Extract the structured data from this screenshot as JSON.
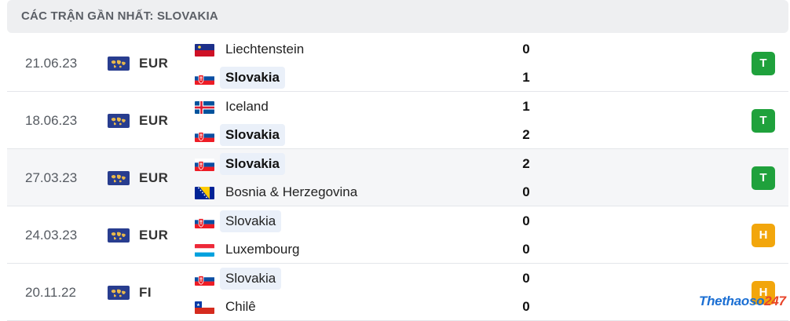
{
  "header": {
    "title": "CÁC TRẬN GẦN NHẤT: SLOVAKIA"
  },
  "matches": [
    {
      "date": "21.06.23",
      "competition": "EUR",
      "home": {
        "name": "Liechtenstein",
        "flag": "liechtenstein",
        "score": "0",
        "highlight": false,
        "bold": false
      },
      "away": {
        "name": "Slovakia",
        "flag": "slovakia",
        "score": "1",
        "highlight": true,
        "bold": true
      },
      "result": "T",
      "result_color": "#1fa13c"
    },
    {
      "date": "18.06.23",
      "competition": "EUR",
      "home": {
        "name": "Iceland",
        "flag": "iceland",
        "score": "1",
        "highlight": false,
        "bold": false
      },
      "away": {
        "name": "Slovakia",
        "flag": "slovakia",
        "score": "2",
        "highlight": true,
        "bold": true
      },
      "result": "T",
      "result_color": "#1fa13c"
    },
    {
      "date": "27.03.23",
      "competition": "EUR",
      "home": {
        "name": "Slovakia",
        "flag": "slovakia",
        "score": "2",
        "highlight": true,
        "bold": true
      },
      "away": {
        "name": "Bosnia & Herzegovina",
        "flag": "bosnia",
        "score": "0",
        "highlight": false,
        "bold": false
      },
      "result": "T",
      "result_color": "#1fa13c"
    },
    {
      "date": "24.03.23",
      "competition": "EUR",
      "home": {
        "name": "Slovakia",
        "flag": "slovakia",
        "score": "0",
        "highlight": true,
        "bold": false
      },
      "away": {
        "name": "Luxembourg",
        "flag": "luxembourg",
        "score": "0",
        "highlight": false,
        "bold": false
      },
      "result": "H",
      "result_color": "#f2a60c"
    },
    {
      "date": "20.11.22",
      "competition": "FI",
      "home": {
        "name": "Slovakia",
        "flag": "slovakia",
        "score": "0",
        "highlight": true,
        "bold": false
      },
      "away": {
        "name": "Chilê",
        "flag": "chile",
        "score": "0",
        "highlight": false,
        "bold": false
      },
      "result": "H",
      "result_color": "#f2a60c"
    }
  ],
  "watermark": {
    "part1": "Thethaoso",
    "part2": "247"
  }
}
